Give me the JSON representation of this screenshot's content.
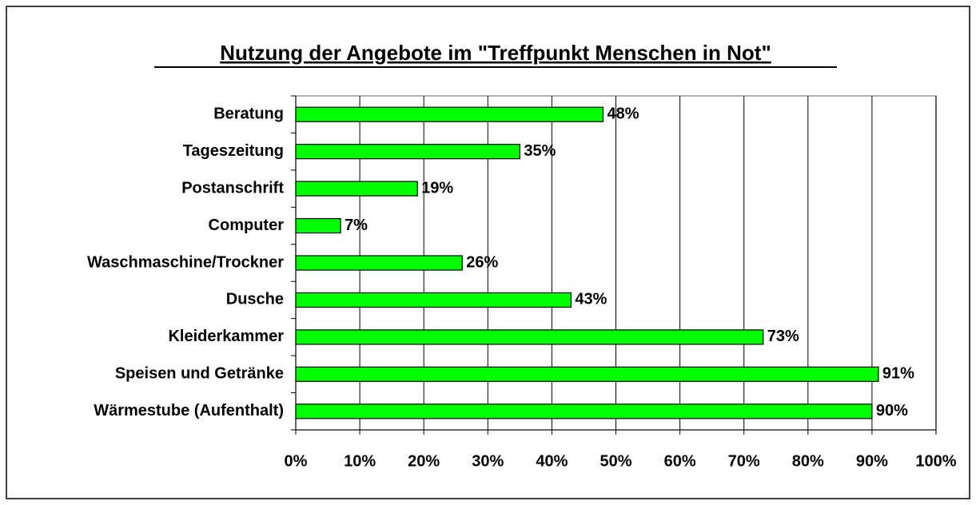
{
  "chart_data": {
    "type": "bar",
    "orientation": "horizontal",
    "title": "Nutzung der Angebote im \"Treffpunkt Menschen in Not\"",
    "categories": [
      "Beratung",
      "Tageszeitung",
      "Postanschrift",
      "Computer",
      "Waschmaschine/Trockner",
      "Dusche",
      "Kleiderkammer",
      "Speisen und Getränke",
      "Wärmestube (Aufenthalt)"
    ],
    "values": [
      48,
      35,
      19,
      7,
      26,
      43,
      73,
      91,
      90
    ],
    "value_labels": [
      "48%",
      "35%",
      "19%",
      "7%",
      "26%",
      "43%",
      "73%",
      "91%",
      "90%"
    ],
    "color": "#00ff00",
    "xlim": [
      0,
      100
    ],
    "xticks": [
      {
        "value": 0,
        "label": "0%"
      },
      {
        "value": 10,
        "label": "10%"
      },
      {
        "value": 20,
        "label": "20%"
      },
      {
        "value": 30,
        "label": "30%"
      },
      {
        "value": 40,
        "label": "40%"
      },
      {
        "value": 50,
        "label": "50%"
      },
      {
        "value": 60,
        "label": "60%"
      },
      {
        "value": 70,
        "label": "70%"
      },
      {
        "value": 80,
        "label": "80%"
      },
      {
        "value": 90,
        "label": "90%"
      },
      {
        "value": 100,
        "label": "100%"
      }
    ],
    "grid": true
  }
}
